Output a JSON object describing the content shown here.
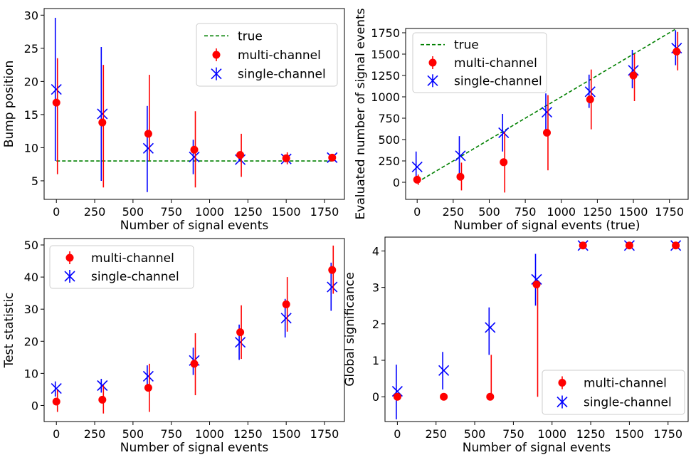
{
  "colors": {
    "multi": "#ff0000",
    "single": "#0000ff",
    "true_line": "#008000",
    "axis": "#000000"
  },
  "chart_data": [
    {
      "type": "scatter",
      "xlabel": "Number of signal events",
      "ylabel": "Bump position",
      "xlim": [
        -80,
        1880
      ],
      "ylim": [
        2.2,
        31
      ],
      "xticks": [
        0,
        250,
        500,
        750,
        1000,
        1250,
        1500,
        1750
      ],
      "yticks": [
        5,
        10,
        15,
        20,
        25,
        30
      ],
      "legend": {
        "position": "top-right",
        "entries": [
          "true",
          "multi-channel",
          "single-channel"
        ]
      },
      "true_line": {
        "name": "true",
        "x": [
          0,
          1800
        ],
        "y": [
          8,
          8
        ]
      },
      "series": [
        {
          "name": "multi-channel",
          "marker": "circle",
          "x": [
            0,
            300,
            600,
            900,
            1200,
            1500,
            1800
          ],
          "y": [
            16.8,
            13.8,
            12.1,
            9.7,
            8.9,
            8.4,
            8.5
          ],
          "err_low": [
            6.0,
            4.0,
            8.0,
            4.0,
            5.6,
            7.5,
            8.2
          ],
          "err_high": [
            23.5,
            22.5,
            21.0,
            15.5,
            12.1,
            9.3,
            8.8
          ]
        },
        {
          "name": "single-channel",
          "marker": "x",
          "x": [
            0,
            300,
            600,
            900,
            1200,
            1500,
            1800
          ],
          "y": [
            18.8,
            15.1,
            9.9,
            8.6,
            8.2,
            8.3,
            8.5
          ],
          "err_low": [
            8.0,
            5.0,
            3.3,
            6.0,
            8.0,
            7.8,
            8.0
          ],
          "err_high": [
            29.6,
            25.2,
            16.3,
            11.2,
            8.5,
            8.8,
            8.9
          ]
        }
      ]
    },
    {
      "type": "scatter",
      "xlabel": "Number of signal events (true)",
      "ylabel": "Evaluated number of signal events",
      "xlim": [
        -80,
        1880
      ],
      "ylim": [
        -200,
        1800
      ],
      "xticks": [
        0,
        250,
        500,
        750,
        1000,
        1250,
        1500,
        1750
      ],
      "yticks": [
        0,
        250,
        500,
        750,
        1000,
        1250,
        1500,
        1750
      ],
      "legend": {
        "position": "top-left",
        "entries": [
          "true",
          "multi-channel",
          "single-channel"
        ]
      },
      "true_line": {
        "name": "true",
        "x": [
          0,
          1800
        ],
        "y": [
          0,
          1800
        ]
      },
      "series": [
        {
          "name": "multi-channel",
          "marker": "circle",
          "x": [
            0,
            300,
            600,
            900,
            1200,
            1500,
            1800
          ],
          "y": [
            30,
            65,
            235,
            580,
            970,
            1250,
            1530
          ],
          "err_low": [
            -30,
            -95,
            -120,
            140,
            620,
            950,
            1310
          ],
          "err_high": [
            90,
            230,
            590,
            1020,
            1320,
            1500,
            1760
          ]
        },
        {
          "name": "single-channel",
          "marker": "x",
          "x": [
            0,
            300,
            600,
            900,
            1200,
            1500,
            1800
          ],
          "y": [
            180,
            310,
            580,
            820,
            1060,
            1310,
            1570
          ],
          "err_low": [
            0,
            60,
            360,
            600,
            870,
            1100,
            1370
          ],
          "err_high": [
            360,
            540,
            800,
            1040,
            1260,
            1550,
            1780
          ]
        }
      ]
    },
    {
      "type": "scatter",
      "xlabel": "Number of signal events",
      "ylabel": "Test statistic",
      "xlim": [
        -80,
        1880
      ],
      "ylim": [
        -5,
        52
      ],
      "xticks": [
        0,
        250,
        500,
        750,
        1000,
        1250,
        1500,
        1750
      ],
      "yticks": [
        0,
        10,
        20,
        30,
        40,
        50
      ],
      "legend": {
        "position": "top-left",
        "entries": [
          "multi-channel",
          "single-channel"
        ]
      },
      "series": [
        {
          "name": "multi-channel",
          "marker": "circle",
          "x": [
            0,
            300,
            600,
            900,
            1200,
            1500,
            1800
          ],
          "y": [
            1.2,
            1.8,
            5.5,
            13.0,
            22.8,
            31.5,
            42.2
          ],
          "err_low": [
            -2.0,
            -2.5,
            -2.0,
            3.2,
            14.5,
            23.0,
            34.8
          ],
          "err_high": [
            4.8,
            6.3,
            13.0,
            22.5,
            31.2,
            40.0,
            49.8
          ]
        },
        {
          "name": "single-channel",
          "marker": "x",
          "x": [
            0,
            300,
            600,
            900,
            1200,
            1500,
            1800
          ],
          "y": [
            5.3,
            6.2,
            9.1,
            14.0,
            19.7,
            27.2,
            36.9
          ],
          "err_low": [
            2.8,
            4.0,
            5.5,
            9.5,
            14.2,
            21.2,
            29.5
          ],
          "err_high": [
            7.5,
            8.3,
            12.5,
            18.0,
            25.2,
            33.2,
            44.5
          ]
        }
      ]
    },
    {
      "type": "scatter",
      "xlabel": "Number of signal events",
      "ylabel": "Global significance",
      "xlim": [
        -80,
        1880
      ],
      "ylim": [
        -0.68,
        4.38
      ],
      "xticks": [
        0,
        250,
        500,
        750,
        1000,
        1250,
        1500,
        1750
      ],
      "yticks": [
        0,
        1,
        2,
        3,
        4
      ],
      "legend": {
        "position": "bottom-right",
        "entries": [
          "multi-channel",
          "single-channel"
        ]
      },
      "series": [
        {
          "name": "multi-channel",
          "marker": "circle",
          "x": [
            0,
            300,
            600,
            900,
            1200,
            1500,
            1800
          ],
          "y": [
            0.0,
            0.0,
            0.0,
            3.08,
            4.15,
            4.15,
            4.15
          ],
          "err_low": [
            0.0,
            0.0,
            0.0,
            0.0,
            4.15,
            4.15,
            4.15
          ],
          "err_high": [
            0.0,
            0.0,
            1.15,
            3.1,
            4.15,
            4.15,
            4.15
          ]
        },
        {
          "name": "single-channel",
          "marker": "x",
          "x": [
            0,
            300,
            600,
            900,
            1200,
            1500,
            1800
          ],
          "y": [
            0.15,
            0.72,
            1.9,
            3.22,
            4.15,
            4.15,
            4.15
          ],
          "err_low": [
            -0.62,
            0.2,
            1.15,
            2.5,
            4.15,
            4.15,
            4.15
          ],
          "err_high": [
            0.88,
            1.23,
            2.45,
            3.92,
            4.15,
            4.15,
            4.15
          ]
        }
      ]
    }
  ]
}
